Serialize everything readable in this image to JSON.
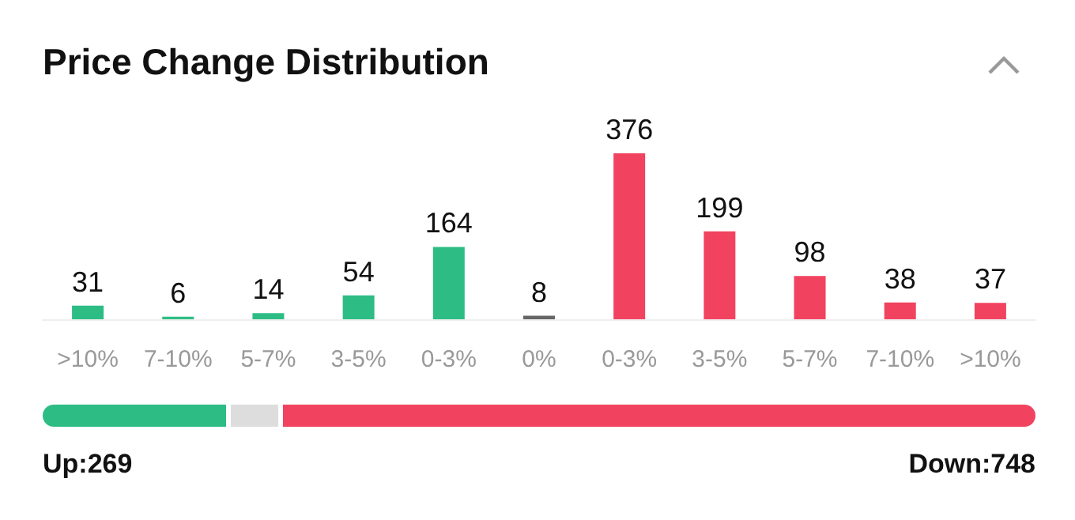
{
  "chart_data": {
    "type": "bar",
    "title": "Price Change Distribution",
    "categories": [
      ">10%",
      "7-10%",
      "5-7%",
      "3-5%",
      "0-3%",
      "0%",
      "0-3%",
      "3-5%",
      "5-7%",
      "7-10%",
      ">10%"
    ],
    "values": [
      31,
      6,
      14,
      54,
      164,
      8,
      376,
      199,
      98,
      38,
      37
    ],
    "colors": [
      "#2dbd84",
      "#2dbd84",
      "#2dbd84",
      "#2dbd84",
      "#2dbd84",
      "#666666",
      "#f1435f",
      "#f1435f",
      "#f1435f",
      "#f1435f",
      "#f1435f"
    ],
    "data_labels": true,
    "annotations": [
      "Up:269",
      "Down:748"
    ]
  }
}
